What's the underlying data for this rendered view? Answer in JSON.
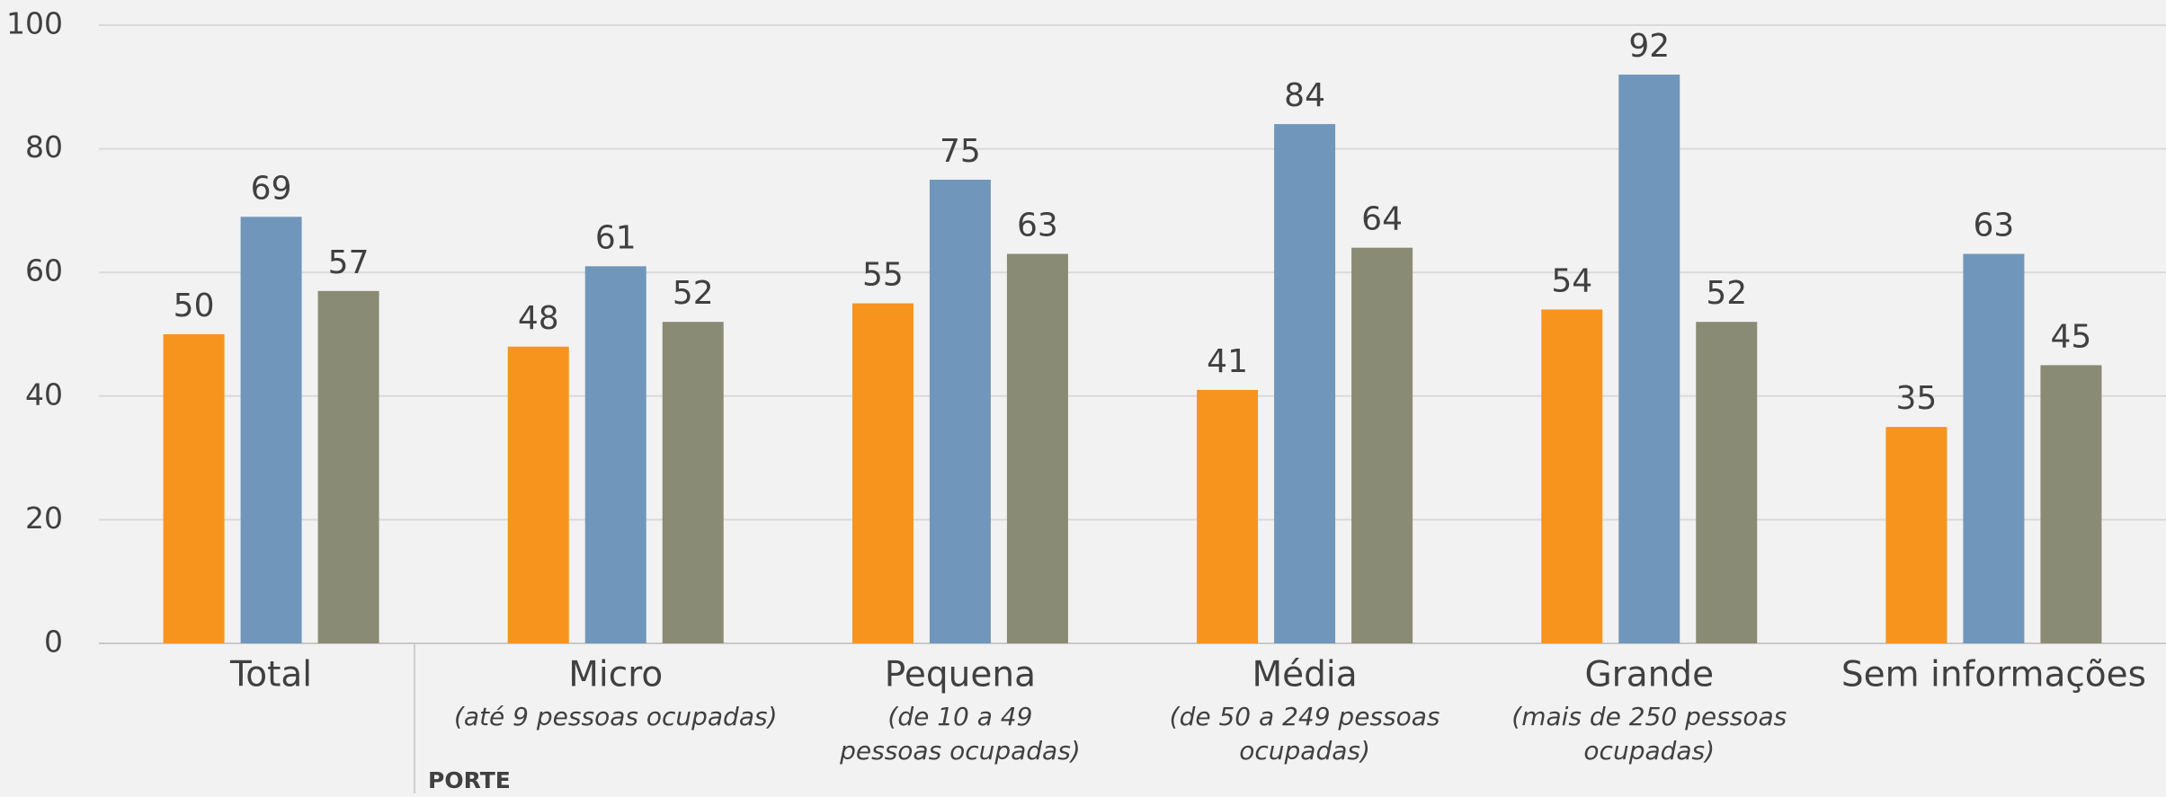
{
  "chart_data": {
    "type": "bar",
    "categories": [
      "Total",
      "Micro",
      "Pequena",
      "Média",
      "Grande",
      "Sem informações"
    ],
    "category_notes": [
      null,
      [
        "(até 9 pessoas ocupadas)"
      ],
      [
        "(de 10 a 49",
        "pessoas ocupadas)"
      ],
      [
        "(de 50 a 249 pessoas",
        "ocupadas)"
      ],
      [
        "(mais de 250 pessoas",
        "ocupadas)"
      ],
      null
    ],
    "group_label": "PORTE",
    "series": [
      {
        "color": "#f7941d",
        "values": [
          50,
          48,
          55,
          41,
          54,
          35
        ]
      },
      {
        "color": "#7097bb",
        "values": [
          69,
          61,
          75,
          84,
          92,
          63
        ]
      },
      {
        "color": "#8a8b74",
        "values": [
          57,
          52,
          63,
          64,
          52,
          45
        ]
      }
    ],
    "ylim": [
      0,
      100
    ],
    "yticks": [
      0,
      20,
      40,
      60,
      80,
      100
    ],
    "grid": true
  }
}
